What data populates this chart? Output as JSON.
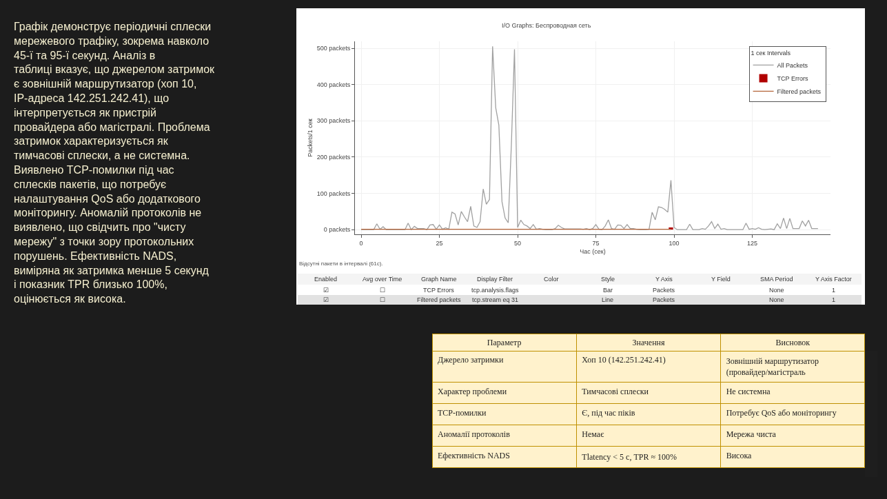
{
  "chart_data": [
    {
      "type": "other",
      "annotations": [
        "Графік демонструє періодичні сплески мережевого трафіку, зокрема навколо 45-ї та 95-ї секунд. Аналіз в таблиці вказує, що джерелом затримок є зовнішній маршрутизатор (хоп 10, IP-адреса 142.251.242.41), що інтерпретується як пристрій провайдера або магістралі. Проблема затримок характеризується як тимчасові сплески, а не системна. Виявлено TCP-помилки під час сплесків пакетів, що потребує налаштування QoS або додаткового моніторингу. Аномалій протоколів не виявлено, що свідчить про \"чисту мережу\" з точки зору протокольних порушень. Ефективність NADS, виміряна як затримка менше 5 секунд і показник TPR близько 100%, оцінюється як висока."
      ]
    },
    {
      "type": "line",
      "title": "I/O Graphs: Беспроводная сеть",
      "xlabel": "Час (сек)",
      "ylabel": "Packets/1 сек",
      "legend_title": "1 сек Intervals",
      "legend": "top right",
      "grid": true,
      "xlim": [
        -2,
        150
      ],
      "xticks": [
        0,
        25,
        50,
        75,
        100,
        125
      ],
      "ylim": [
        -13,
        519
      ],
      "yticks": [
        {
          "value": 0,
          "label": "0 packets"
        },
        {
          "value": 100,
          "label": "100 packets"
        },
        {
          "value": 200,
          "label": "200 packets"
        },
        {
          "value": 300,
          "label": "300 packets"
        },
        {
          "value": 400,
          "label": "400 packets"
        },
        {
          "value": 500,
          "label": "500 packets"
        }
      ],
      "annotations": [
        "Відсутні пакети в інтервалі (61с)."
      ],
      "series": [
        {
          "name": "All Packets",
          "type": "line",
          "color": "#a0a0a0",
          "x": [
            0,
            2,
            4,
            5,
            6,
            7,
            8,
            10,
            14,
            15,
            16,
            17,
            18,
            20,
            21,
            22,
            23,
            24,
            25,
            26,
            27,
            28,
            29,
            30,
            31,
            32,
            33,
            34,
            35,
            36,
            37,
            38,
            39,
            40,
            41,
            42,
            43,
            44,
            45,
            46,
            47,
            48,
            49,
            50,
            51,
            52,
            53,
            54,
            55,
            56,
            57,
            58,
            59,
            60,
            61,
            62,
            63,
            64,
            65,
            70,
            71,
            72,
            73,
            74,
            75,
            76,
            77,
            78,
            79,
            80,
            81,
            82,
            83,
            84,
            85,
            86,
            87,
            88,
            89,
            91,
            92,
            93,
            94,
            95,
            96,
            97,
            98,
            99,
            100,
            101,
            104,
            105,
            106,
            108,
            109,
            110,
            111,
            112,
            113,
            114,
            115,
            116,
            117,
            121,
            122,
            123,
            124,
            125,
            126,
            127,
            128,
            129,
            130,
            131,
            132,
            133,
            134,
            135,
            136,
            137,
            138,
            139,
            140,
            141,
            142,
            143,
            144,
            146
          ],
          "values": [
            0,
            0,
            0,
            16,
            1,
            8,
            0,
            0,
            0,
            18,
            0,
            9,
            3,
            3,
            0,
            13,
            14,
            1,
            13,
            1,
            5,
            1,
            48,
            43,
            13,
            50,
            35,
            22,
            64,
            10,
            6,
            22,
            112,
            70,
            83,
            505,
            336,
            288,
            77,
            32,
            19,
            234,
            497,
            6,
            26,
            14,
            10,
            3,
            14,
            1,
            3,
            1,
            0,
            0,
            0,
            3,
            12,
            6,
            2,
            2,
            1,
            3,
            0,
            3,
            14,
            1,
            0,
            10,
            27,
            3,
            1,
            13,
            12,
            3,
            14,
            3,
            3,
            1,
            0,
            0,
            1,
            48,
            27,
            63,
            61,
            56,
            48,
            136,
            6,
            0,
            0,
            15,
            0,
            0,
            3,
            1,
            10,
            22,
            3,
            15,
            1,
            3,
            0,
            0,
            0,
            18,
            1,
            3,
            1,
            5,
            1,
            0,
            1,
            2,
            0,
            16,
            3,
            32,
            3,
            31,
            3,
            3,
            3,
            24,
            10,
            26,
            3,
            3
          ]
        },
        {
          "name": "TCP Errors",
          "type": "bar",
          "color": "#b00000",
          "x": [
            99
          ],
          "values": [
            6
          ]
        },
        {
          "name": "Filtered packets",
          "type": "line",
          "color": "#b5653a",
          "x": [
            0,
            25,
            50,
            75,
            99
          ],
          "values": [
            1,
            1,
            1,
            1,
            1
          ]
        }
      ]
    },
    {
      "type": "other",
      "annotations": [
        "Enabled",
        "Avg over Time",
        "Graph Name",
        "Display Filter",
        "Color",
        "Style",
        "Y Axis",
        "Y Field",
        "SMA Period",
        "Y Axis Factor",
        "☑",
        "☐",
        "TCP Errors",
        "tcp.analysis.flags",
        null,
        "Bar",
        "Packets",
        null,
        "None",
        "1",
        "☑",
        "☐",
        "Filtered packets",
        "tcp.stream eq 31",
        null,
        "Line",
        "Packets",
        null,
        "None",
        "1"
      ]
    },
    {
      "type": "other",
      "annotations": [
        "Параметр",
        "Значення",
        "Висновок",
        "Джерело затримки",
        "Хоп 10 (142.251.242.41)",
        "Зовнішній маршрутизатор (провайдер/магістраль",
        "Характер проблеми",
        "Тимчасові сплески",
        "Не системна",
        "TCP-помилки",
        "Є, під час піків",
        "Потребує QoS або моніторингу",
        "Аномалії протоколів",
        "Немає",
        "Мережа чиста",
        "Ефективність NADS",
        "Тlatency < 5 с, TPR ≈ 100%",
        "Висока"
      ]
    }
  ]
}
